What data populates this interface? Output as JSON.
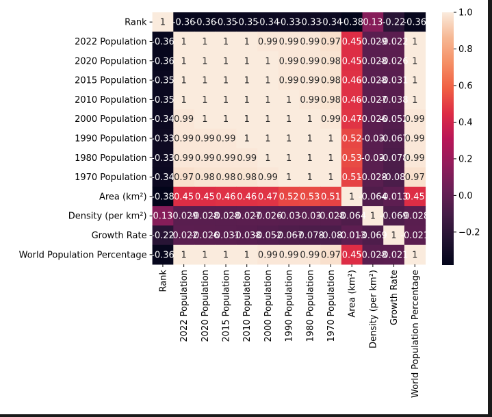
{
  "chart_data": {
    "type": "heatmap",
    "title": "",
    "xlabel": "",
    "ylabel": "",
    "colormap": "rocket",
    "vlim": [
      -0.38,
      1.0
    ],
    "labels": [
      "Rank",
      "2022 Population",
      "2020 Population",
      "2015 Population",
      "2010 Population",
      "2000 Population",
      "1990 Population",
      "1980 Population",
      "1970 Population",
      "Area (km²)",
      "Density (per km²)",
      "Growth Rate",
      "World Population Percentage"
    ],
    "values": [
      [
        1,
        -0.36,
        -0.36,
        -0.35,
        -0.35,
        -0.34,
        -0.33,
        -0.33,
        -0.34,
        -0.38,
        0.13,
        -0.22,
        -0.36
      ],
      [
        -0.36,
        1,
        1,
        1,
        1,
        0.99,
        0.99,
        0.99,
        0.97,
        0.45,
        -0.029,
        -0.022,
        1
      ],
      [
        -0.36,
        1,
        1,
        1,
        1,
        1,
        0.99,
        0.99,
        0.98,
        0.45,
        -0.028,
        -0.026,
        1
      ],
      [
        -0.35,
        1,
        1,
        1,
        1,
        1,
        0.99,
        0.99,
        0.98,
        0.46,
        -0.028,
        -0.031,
        1
      ],
      [
        -0.35,
        1,
        1,
        1,
        1,
        1,
        1,
        0.99,
        0.98,
        0.46,
        -0.027,
        -0.038,
        1
      ],
      [
        -0.34,
        0.99,
        1,
        1,
        1,
        1,
        1,
        1,
        0.99,
        0.47,
        -0.026,
        -0.052,
        0.99
      ],
      [
        -0.33,
        0.99,
        0.99,
        0.99,
        1,
        1,
        1,
        1,
        1,
        0.52,
        -0.03,
        -0.067,
        0.99
      ],
      [
        -0.33,
        0.99,
        0.99,
        0.99,
        0.99,
        1,
        1,
        1,
        1,
        0.53,
        -0.03,
        -0.078,
        0.99
      ],
      [
        -0.34,
        0.97,
        0.98,
        0.98,
        0.98,
        0.99,
        1,
        1,
        1,
        0.51,
        -0.028,
        -0.08,
        0.97
      ],
      [
        -0.38,
        0.45,
        0.45,
        0.46,
        0.46,
        0.47,
        0.52,
        0.53,
        0.51,
        1,
        -0.064,
        -0.013,
        0.45
      ],
      [
        0.13,
        -0.029,
        -0.028,
        -0.028,
        -0.027,
        -0.026,
        -0.03,
        -0.03,
        -0.028,
        -0.064,
        1,
        -0.069,
        -0.028
      ],
      [
        -0.22,
        -0.022,
        -0.026,
        -0.031,
        -0.038,
        -0.052,
        -0.067,
        -0.078,
        -0.08,
        -0.013,
        -0.069,
        1,
        -0.021
      ],
      [
        -0.36,
        1,
        1,
        1,
        1,
        0.99,
        0.99,
        0.99,
        0.97,
        0.45,
        -0.028,
        -0.021,
        1
      ]
    ],
    "colorbar_ticks": [
      "1.0",
      "0.8",
      "0.6",
      "0.4",
      "0.2",
      "0.0",
      "−0.2"
    ],
    "colorbar_tick_values": [
      1.0,
      0.8,
      0.6,
      0.4,
      0.2,
      0.0,
      -0.2
    ]
  }
}
